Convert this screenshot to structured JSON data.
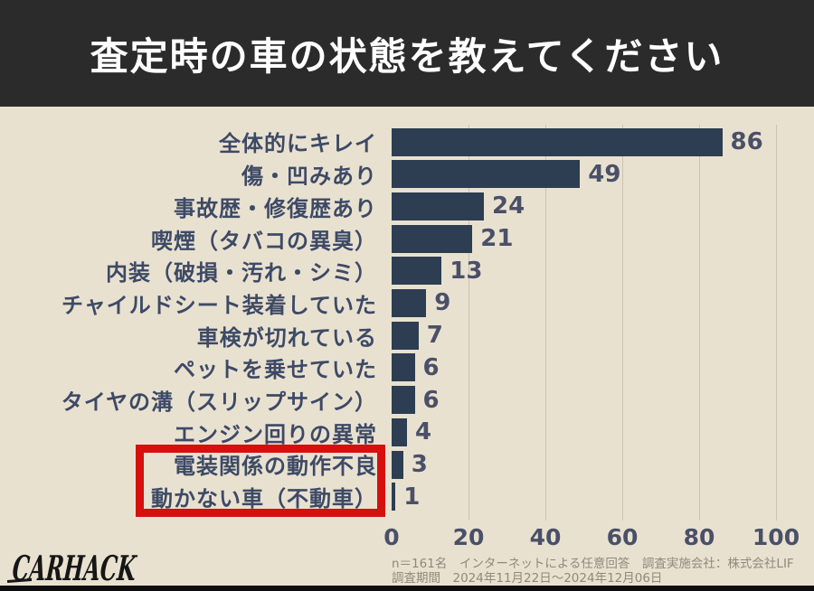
{
  "title": "査定時の車の状態を教えてください",
  "chart_data": {
    "type": "bar",
    "orientation": "horizontal",
    "title": "査定時の車の状態を教えてください",
    "categories": [
      "全体的にキレイ",
      "傷・凹みあり",
      "事故歴・修復歴あり",
      "喫煙（タバコの異臭）",
      "内装（破損・汚れ・シミ）",
      "チャイルドシート装着していた",
      "車検が切れている",
      "ペットを乗せていた",
      "タイヤの溝（スリップサイン）",
      "エンジン回りの異常",
      "電装関係の動作不良",
      "動かない車（不動車）"
    ],
    "values": [
      86,
      49,
      24,
      21,
      13,
      9,
      7,
      6,
      6,
      4,
      3,
      1
    ],
    "xlim": [
      0,
      100
    ],
    "x_ticks": [
      0,
      20,
      40,
      60,
      80,
      100
    ],
    "grid": true,
    "value_labels": true,
    "highlight_indices": [
      10,
      11
    ],
    "bar_color": "#2d3e52",
    "highlight_box_color": "#d6100f"
  },
  "footer": {
    "logo": "CARHACK",
    "note_line1": "n＝161名　インターネットによる任意回答　調査実施会社：株式会社LIF",
    "note_line2": "調査期間　2024年11月22日～2024年12月06日"
  }
}
